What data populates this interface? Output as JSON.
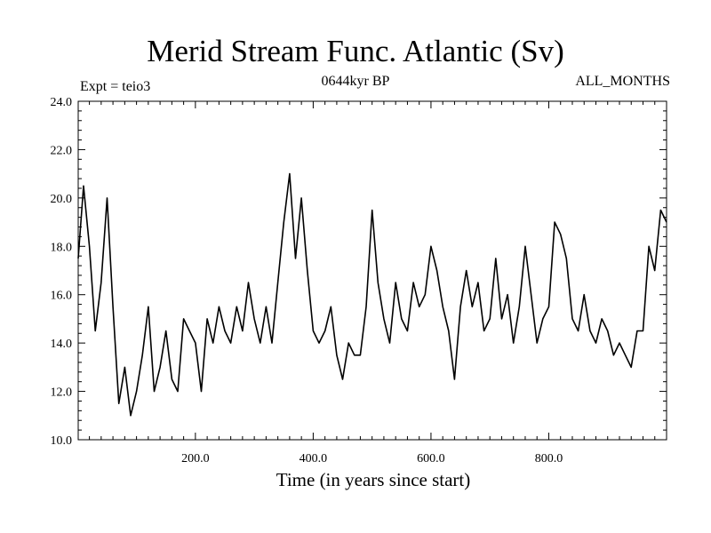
{
  "title": "Merid Stream Func. Atlantic (Sv)",
  "subtitle": "0644kyr BP",
  "experiment_label": "Expt = teio3",
  "months_label": "ALL_MONTHS",
  "xlabel": "Time (in years since start)",
  "chart_data": {
    "type": "line",
    "title": "Merid Stream Func. Atlantic (Sv)",
    "xlabel": "Time (in years since start)",
    "ylabel": "",
    "xlim": [
      1,
      1000
    ],
    "ylim": [
      10.0,
      24.0
    ],
    "x_ticks": [
      200,
      400,
      600,
      800
    ],
    "x_tick_labels": [
      "200.0",
      "400.0",
      "600.0",
      "800.0"
    ],
    "y_ticks": [
      10,
      12,
      14,
      16,
      18,
      20,
      22,
      24
    ],
    "y_tick_labels": [
      "10.0",
      "12.0",
      "14.0",
      "16.0",
      "18.0",
      "20.0",
      "22.0",
      "24.0"
    ],
    "grid": false,
    "color": "#000000",
    "series": [
      {
        "x": [
          1,
          10,
          20,
          30,
          40,
          50,
          60,
          70,
          80,
          90,
          100,
          110,
          120,
          130,
          140,
          150,
          160,
          170,
          180,
          190,
          200,
          210,
          220,
          230,
          240,
          250,
          260,
          270,
          280,
          290,
          300,
          310,
          320,
          330,
          340,
          350,
          360,
          370,
          380,
          390,
          400,
          410,
          420,
          430,
          440,
          450,
          460,
          470,
          480,
          490,
          500,
          510,
          520,
          530,
          540,
          550,
          560,
          570,
          580,
          590,
          600,
          610,
          620,
          630,
          640,
          650,
          660,
          670,
          680,
          690,
          700,
          710,
          720,
          730,
          740,
          750,
          760,
          770,
          780,
          790,
          800,
          810,
          820,
          830,
          840,
          850,
          860,
          870,
          880,
          890,
          900,
          910,
          920,
          930,
          940,
          950,
          960,
          970,
          980,
          990,
          1000
        ],
        "values": [
          17.5,
          20.5,
          18.0,
          14.5,
          16.5,
          20.0,
          15.5,
          11.5,
          13.0,
          11.0,
          12.0,
          13.5,
          15.5,
          12.0,
          13.0,
          14.5,
          12.5,
          12.0,
          15.0,
          14.5,
          14.0,
          12.0,
          15.0,
          14.0,
          15.5,
          14.5,
          14.0,
          15.5,
          14.5,
          16.5,
          15.0,
          14.0,
          15.5,
          14.0,
          16.5,
          19.0,
          21.0,
          17.5,
          20.0,
          17.0,
          14.5,
          14.0,
          14.5,
          15.5,
          13.5,
          12.5,
          14.0,
          13.5,
          13.5,
          15.5,
          19.5,
          16.5,
          15.0,
          14.0,
          16.5,
          15.0,
          14.5,
          16.5,
          15.5,
          16.0,
          18.0,
          17.0,
          15.5,
          14.5,
          12.5,
          15.5,
          17.0,
          15.5,
          16.5,
          14.5,
          15.0,
          17.5,
          15.0,
          16.0,
          14.0,
          15.5,
          18.0,
          16.0,
          14.0,
          15.0,
          15.5,
          19.0,
          18.5,
          17.5,
          15.0,
          14.5,
          16.0,
          14.5,
          14.0,
          15.0,
          14.5,
          13.5,
          14.0,
          13.5,
          13.0,
          14.5,
          14.5,
          18.0,
          17.0,
          19.5,
          19.0
        ]
      }
    ]
  }
}
